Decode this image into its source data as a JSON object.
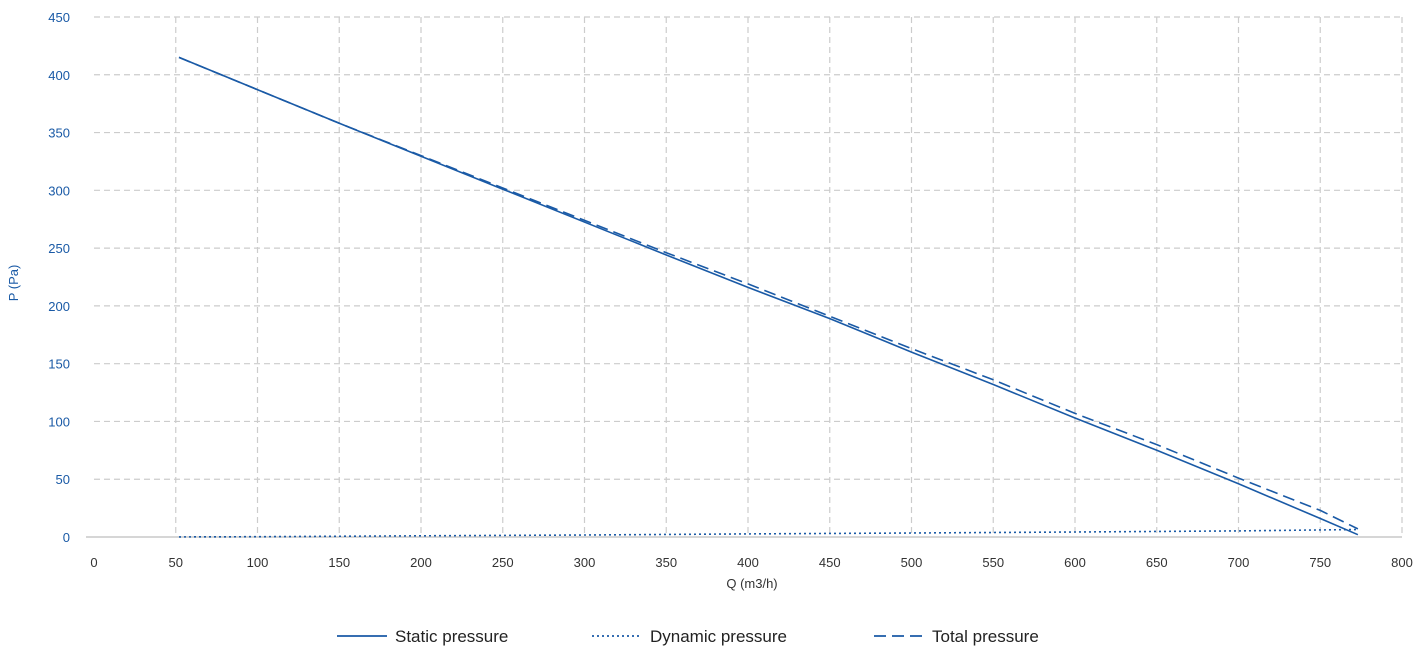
{
  "chart_data": {
    "type": "line",
    "xlabel": "Q (m3/h)",
    "ylabel": "P (Pa)",
    "xlim": [
      0,
      800
    ],
    "ylim": [
      0,
      450
    ],
    "x_ticks": [
      "0",
      "50",
      "100",
      "150",
      "200",
      "250",
      "300",
      "350",
      "400",
      "450",
      "500",
      "550",
      "600",
      "650",
      "700",
      "750",
      "800"
    ],
    "y_ticks": [
      "0",
      "50",
      "100",
      "150",
      "200",
      "250",
      "300",
      "350",
      "400",
      "450"
    ],
    "grid": true,
    "legend_position": "bottom-center",
    "series": [
      {
        "name": "Static pressure",
        "style": "solid",
        "color": "#1a5aa6",
        "points": [
          [
            52,
            415
          ],
          [
            150,
            358
          ],
          [
            250,
            301
          ],
          [
            350,
            244
          ],
          [
            400,
            216
          ],
          [
            450,
            189
          ],
          [
            500,
            160
          ],
          [
            550,
            132
          ],
          [
            600,
            103
          ],
          [
            650,
            75
          ],
          [
            700,
            46
          ],
          [
            750,
            16
          ],
          [
            773,
            2
          ]
        ]
      },
      {
        "name": "Dynamic pressure",
        "style": "dotted",
        "color": "#1a5aa6",
        "points": [
          [
            52,
            0.1
          ],
          [
            100,
            0.3
          ],
          [
            200,
            1.0
          ],
          [
            300,
            1.7
          ],
          [
            400,
            2.7
          ],
          [
            500,
            3.5
          ],
          [
            600,
            4.3
          ],
          [
            700,
            5.3
          ],
          [
            773,
            6.5
          ]
        ]
      },
      {
        "name": "Total pressure",
        "style": "dashed",
        "color": "#1a5aa6",
        "points": [
          [
            52,
            415
          ],
          [
            150,
            358
          ],
          [
            250,
            302
          ],
          [
            350,
            246
          ],
          [
            400,
            219
          ],
          [
            450,
            191
          ],
          [
            500,
            163
          ],
          [
            550,
            136
          ],
          [
            600,
            107
          ],
          [
            650,
            80
          ],
          [
            700,
            51
          ],
          [
            750,
            23
          ],
          [
            773,
            7
          ]
        ]
      }
    ]
  },
  "colors": {
    "axis_text": "#1a5aa6",
    "tick_text": "#333333",
    "grid": "#cccccc",
    "line": "#1a5aa6"
  }
}
